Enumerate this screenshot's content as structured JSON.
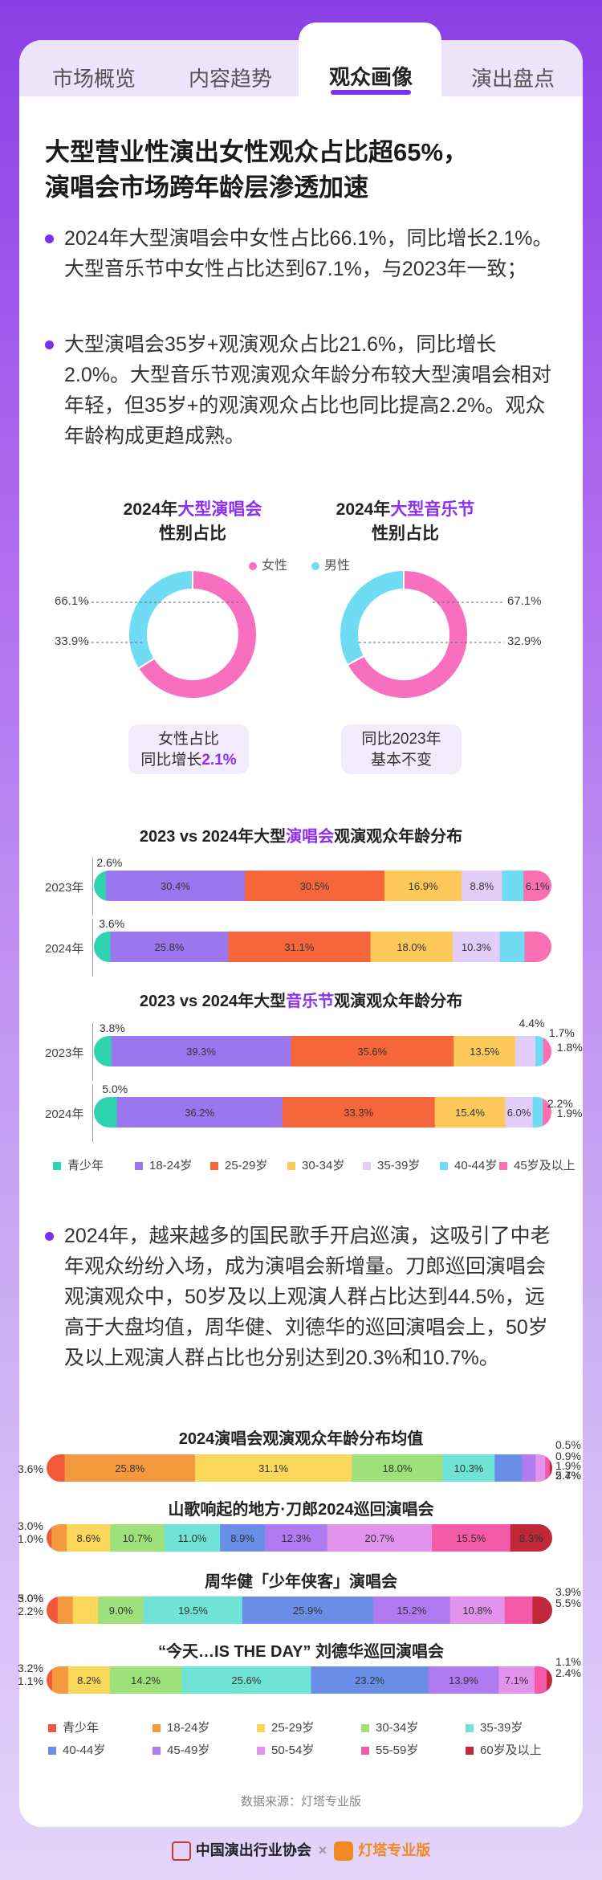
{
  "tabs": [
    "市场概览",
    "内容趋势",
    "观众画像",
    "演出盘点"
  ],
  "active_tab": 2,
  "headline": [
    "大型营业性演出女性观众占比超65%，",
    "演唱会市场跨年龄层渗透加速"
  ],
  "bullets": [
    "2024年大型演唱会中女性占比66.1%，同比增长2.1%。大型音乐节中女性占比达到67.1%，与2023年一致；",
    "大型演唱会35岁+观演观众占比21.6%，同比增长2.0%。大型音乐节观演观众年龄分布较大型演唱会相对年轻，但35岁+的观演观众占比也同比提高2.2%。观众年龄构成更趋成熟。",
    "2024年，越来越多的国民歌手开启巡演，这吸引了中老年观众纷纷入场，成为演唱会新增量。刀郎巡回演唱会观演观众中，50岁及以上观演人群占比达到44.5%，远高于大盘均值，周华健、刘德华的巡回演唱会上，50岁及以上观演人群占比也分别达到20.3%和10.7%。"
  ],
  "pies": [
    {
      "title_pre": "2024年",
      "title_hl": "大型演唱会",
      "title_sub": "性别占比",
      "legend": "女性",
      "female": 66.1,
      "male": 33.9,
      "female_label": "66.1%",
      "male_label": "33.9%",
      "note": [
        "女性占比",
        "同比增长"
      ],
      "note_hl": "2.1%"
    },
    {
      "title_pre": "2024年",
      "title_hl": "大型音乐节",
      "title_sub": "性别占比",
      "legend": "男性",
      "female": 67.1,
      "male": 32.9,
      "female_label": "67.1%",
      "male_label": "32.9%",
      "note": [
        "同比2023年",
        "基本不变"
      ],
      "note_hl": ""
    }
  ],
  "colors": {
    "female": "#f86fc0",
    "male": "#6fdcf4",
    "accent": "#8c2ff0",
    "age7": [
      "#2fd3b0",
      "#9a77ee",
      "#f5663b",
      "#fcc95a",
      "#e2cdf8",
      "#6fdcf4",
      "#f86fb2"
    ],
    "age11": [
      "#f05a3a",
      "#f49a3e",
      "#fbd85a",
      "#9ee07a",
      "#6fe3d6",
      "#6a8ee8",
      "#b07af0",
      "#e293ec",
      "#f45aa8",
      "#c0283a"
    ]
  },
  "chart_data": [
    {
      "type": "bar",
      "title_pre": "2023 vs 2024年大型",
      "title_hl": "演唱会",
      "title_post": "观演观众年龄分布",
      "categories": [
        "青少年",
        "18-24岁",
        "25-29岁",
        "30-34岁",
        "35-39岁",
        "40-44岁",
        "45岁及以上"
      ],
      "rows": [
        {
          "label": "2023年",
          "values": [
            2.6,
            30.4,
            30.5,
            16.9,
            8.8,
            4.7,
            6.1
          ],
          "labels": [
            "2.6%",
            "30.4%",
            "30.5%",
            "16.9%",
            "8.8%",
            "4.7%",
            "6.1%"
          ]
        },
        {
          "label": "2024年",
          "values": [
            3.6,
            25.8,
            31.1,
            18.0,
            10.3,
            5.4,
            5.9
          ],
          "labels": [
            "3.6%",
            "25.8%",
            "31.1%",
            "18.0%",
            "10.3%",
            "5.4%",
            "5.9%"
          ]
        }
      ]
    },
    {
      "type": "bar",
      "title_pre": "2023 vs 2024年大型",
      "title_hl": "音乐节",
      "title_post": "观演观众年龄分布",
      "categories": [
        "青少年",
        "18-24岁",
        "25-29岁",
        "30-34岁",
        "35-39岁",
        "40-44岁",
        "45岁及以上"
      ],
      "rows": [
        {
          "label": "2023年",
          "values": [
            3.8,
            39.3,
            35.6,
            13.5,
            4.4,
            1.7,
            1.8
          ],
          "labels": [
            "3.8%",
            "39.3%",
            "35.6%",
            "13.5%",
            "4.4%",
            "1.7%",
            "1.8%"
          ]
        },
        {
          "label": "2024年",
          "values": [
            5.0,
            36.2,
            33.3,
            15.4,
            6.0,
            2.2,
            1.9
          ],
          "labels": [
            "5.0%",
            "36.2%",
            "33.3%",
            "15.4%",
            "6.0%",
            "2.2%",
            "1.9%"
          ]
        }
      ]
    },
    {
      "type": "bar",
      "title": "2024演唱会观演观众年龄分布均值",
      "categories": [
        "青少年",
        "18-24岁",
        "25-29岁",
        "30-34岁",
        "35-39岁",
        "40-44岁",
        "45-49岁",
        "50-54岁",
        "55-59岁",
        "60岁及以上"
      ],
      "values": [
        3.6,
        25.8,
        31.1,
        18.0,
        10.3,
        5.4,
        2.7,
        1.9,
        0.9,
        0.5
      ],
      "labels": [
        "3.6%",
        "25.8%",
        "31.1%",
        "18.0%",
        "10.3%",
        "5.4%",
        "2.7%",
        "1.9%",
        "0.9%",
        "0.5%"
      ]
    },
    {
      "type": "bar",
      "title": "山歌响起的地方·刀郎2024巡回演唱会",
      "categories": [
        "青少年",
        "18-24岁",
        "25-29岁",
        "30-34岁",
        "35-39岁",
        "40-44岁",
        "45-49岁",
        "50-54岁",
        "55-59岁",
        "60岁及以上"
      ],
      "values": [
        1.0,
        3.0,
        8.6,
        10.7,
        11.0,
        8.9,
        12.3,
        20.7,
        15.5,
        8.3
      ],
      "labels": [
        "1.0%",
        "3.0%",
        "8.6%",
        "10.7%",
        "11.0%",
        "8.9%",
        "12.3%",
        "20.7%",
        "15.5%",
        "8.3%"
      ]
    },
    {
      "type": "bar",
      "title": "周华健「少年侠客」演唱会",
      "categories": [
        "青少年",
        "18-24岁",
        "25-29岁",
        "30-34岁",
        "35-39岁",
        "40-44岁",
        "45-49岁",
        "50-54岁",
        "55-59岁",
        "60岁及以上"
      ],
      "values": [
        2.2,
        3.0,
        5.0,
        9.0,
        19.5,
        25.9,
        15.2,
        10.8,
        5.5,
        3.9
      ],
      "labels": [
        "2.2%",
        "3.0%",
        "5.0%",
        "9.0%",
        "19.5%",
        "25.9%",
        "15.2%",
        "10.8%",
        "5.5%",
        "3.9%"
      ]
    },
    {
      "type": "bar",
      "title": "“今天…IS THE DAY” 刘德华巡回演唱会",
      "categories": [
        "青少年",
        "18-24岁",
        "25-29岁",
        "30-34岁",
        "35-39岁",
        "40-44岁",
        "45-49岁",
        "50-54岁",
        "55-59岁",
        "60岁及以上"
      ],
      "values": [
        1.1,
        3.2,
        8.2,
        14.2,
        25.6,
        23.2,
        13.9,
        7.1,
        2.4,
        1.1
      ],
      "labels": [
        "1.1%",
        "3.2%",
        "8.2%",
        "14.2%",
        "25.6%",
        "23.2%",
        "13.9%",
        "7.1%",
        "2.4%",
        "1.1%"
      ]
    }
  ],
  "legend7": [
    "青少年",
    "18-24岁",
    "25-29岁",
    "30-34岁",
    "35-39岁",
    "40-44岁",
    "45岁及以上"
  ],
  "legend10": [
    "青少年",
    "18-24岁",
    "25-29岁",
    "30-34岁",
    "35-39岁",
    "40-44岁",
    "45-49岁",
    "50-54岁",
    "55-59岁",
    "60岁及以上"
  ],
  "source": "数据来源：灯塔专业版",
  "footer": {
    "org": "中国演出行业协会",
    "brand": "灯塔专业版"
  }
}
